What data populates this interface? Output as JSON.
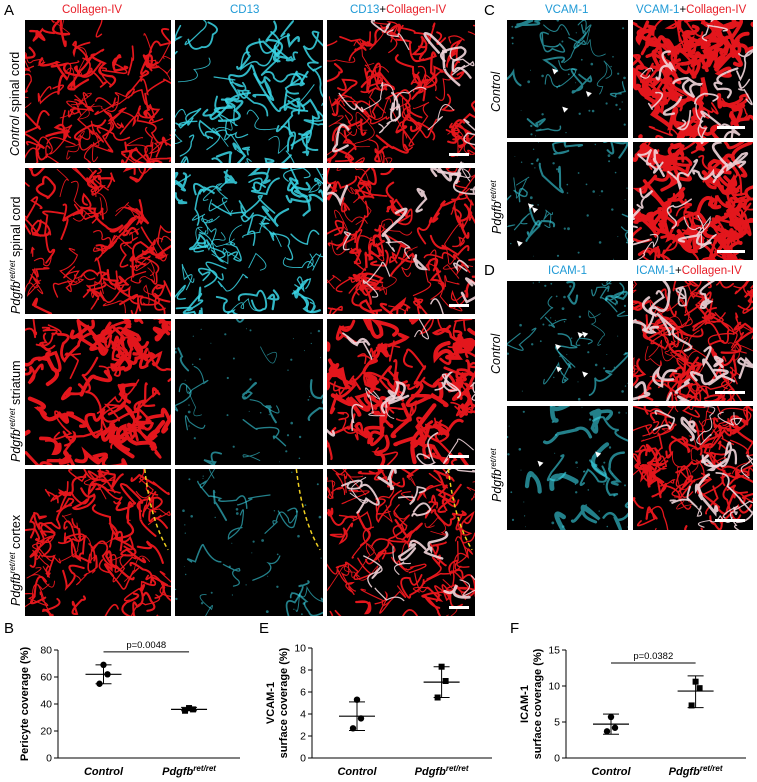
{
  "panel_letters": {
    "A": "A",
    "B": "B",
    "C": "C",
    "D": "D",
    "E": "E",
    "F": "F"
  },
  "A": {
    "col_headers": {
      "c1": "Collagen-IV",
      "c2": "CD13",
      "c3_a": "CD13",
      "c3_plus": "+",
      "c3_b": "Collagen-IV"
    },
    "rows": [
      {
        "italic": "Control",
        "sup": "",
        "rest": " spinal cord"
      },
      {
        "italic": "Pdgfb",
        "sup": "ret/ret",
        "rest": " spinal cord"
      },
      {
        "italic": "Pdgfb",
        "sup": "ret/ret",
        "rest": " striatum"
      },
      {
        "italic": "Pdgfb",
        "sup": "ret/ret",
        "rest": " cortex"
      }
    ]
  },
  "C": {
    "headers": {
      "h1": "VCAM-1",
      "h2_a": "VCAM-1",
      "h2_plus": "+",
      "h2_b": "Collagen-IV"
    },
    "rows": [
      {
        "italic": "Control",
        "sup": ""
      },
      {
        "italic": "Pdgfb",
        "sup": "ret/ret"
      }
    ]
  },
  "D": {
    "headers": {
      "h1": "ICAM-1",
      "h2_a": "ICAM-1",
      "h2_plus": "+",
      "h2_b": "Collagen-IV"
    },
    "rows": [
      {
        "italic": "Control",
        "sup": ""
      },
      {
        "italic": "Pdgfb",
        "sup": "ret/ret"
      }
    ]
  },
  "colors": {
    "red": "#e8202a",
    "cyan": "#1f9ad6",
    "vessel_red": "#e3161c",
    "cyan_signal": "#3ad6e6",
    "dashed": "#f0d020"
  },
  "chart_data": [
    {
      "id": "B",
      "type": "scatter",
      "ylabel": "Pericyte coverage (%)",
      "ylim": [
        0,
        80
      ],
      "yticks": [
        0,
        20,
        40,
        60,
        80
      ],
      "categories": [
        "Control",
        "Pdgfb"
      ],
      "category_sup": [
        "",
        "ret/ret"
      ],
      "series": [
        {
          "category": "Control",
          "points": [
            69,
            62,
            55
          ],
          "mean": 62,
          "sd_low": 55,
          "sd_high": 69,
          "marker": "circle"
        },
        {
          "category": "Pdgfb",
          "points": [
            37,
            36,
            35
          ],
          "mean": 36,
          "sd_low": 35,
          "sd_high": 37.5,
          "marker": "square"
        }
      ],
      "annotation": "p=0.0048"
    },
    {
      "id": "E",
      "type": "scatter",
      "ylabel_line1": "VCAM-1",
      "ylabel_line2": "surface coverage (%)",
      "ylim": [
        0,
        10
      ],
      "yticks": [
        0,
        2,
        4,
        6,
        8,
        10
      ],
      "categories": [
        "Control",
        "Pdgfb"
      ],
      "category_sup": [
        "",
        "ret/ret"
      ],
      "series": [
        {
          "category": "Control",
          "points": [
            5.3,
            3.6,
            2.7
          ],
          "mean": 3.8,
          "sd_low": 2.5,
          "sd_high": 5.1,
          "marker": "circle"
        },
        {
          "category": "Pdgfb",
          "points": [
            8.3,
            7.0,
            5.5
          ],
          "mean": 6.9,
          "sd_low": 5.5,
          "sd_high": 8.3,
          "marker": "square"
        }
      ],
      "annotation": ""
    },
    {
      "id": "F",
      "type": "scatter",
      "ylabel_line1": "ICAM-1",
      "ylabel_line2": "surface coverage (%)",
      "ylim": [
        0,
        15
      ],
      "yticks": [
        0,
        5,
        10,
        15
      ],
      "categories": [
        "Control",
        "Pdgfb"
      ],
      "category_sup": [
        "",
        "ret/ret"
      ],
      "series": [
        {
          "category": "Control",
          "points": [
            5.7,
            4.2,
            3.7
          ],
          "mean": 4.7,
          "sd_low": 3.3,
          "sd_high": 6.1,
          "marker": "circle"
        },
        {
          "category": "Pdgfb",
          "points": [
            10.6,
            9.7,
            7.3
          ],
          "mean": 9.3,
          "sd_low": 7.0,
          "sd_high": 11.4,
          "marker": "square"
        }
      ],
      "annotation": "p=0.0382"
    }
  ]
}
